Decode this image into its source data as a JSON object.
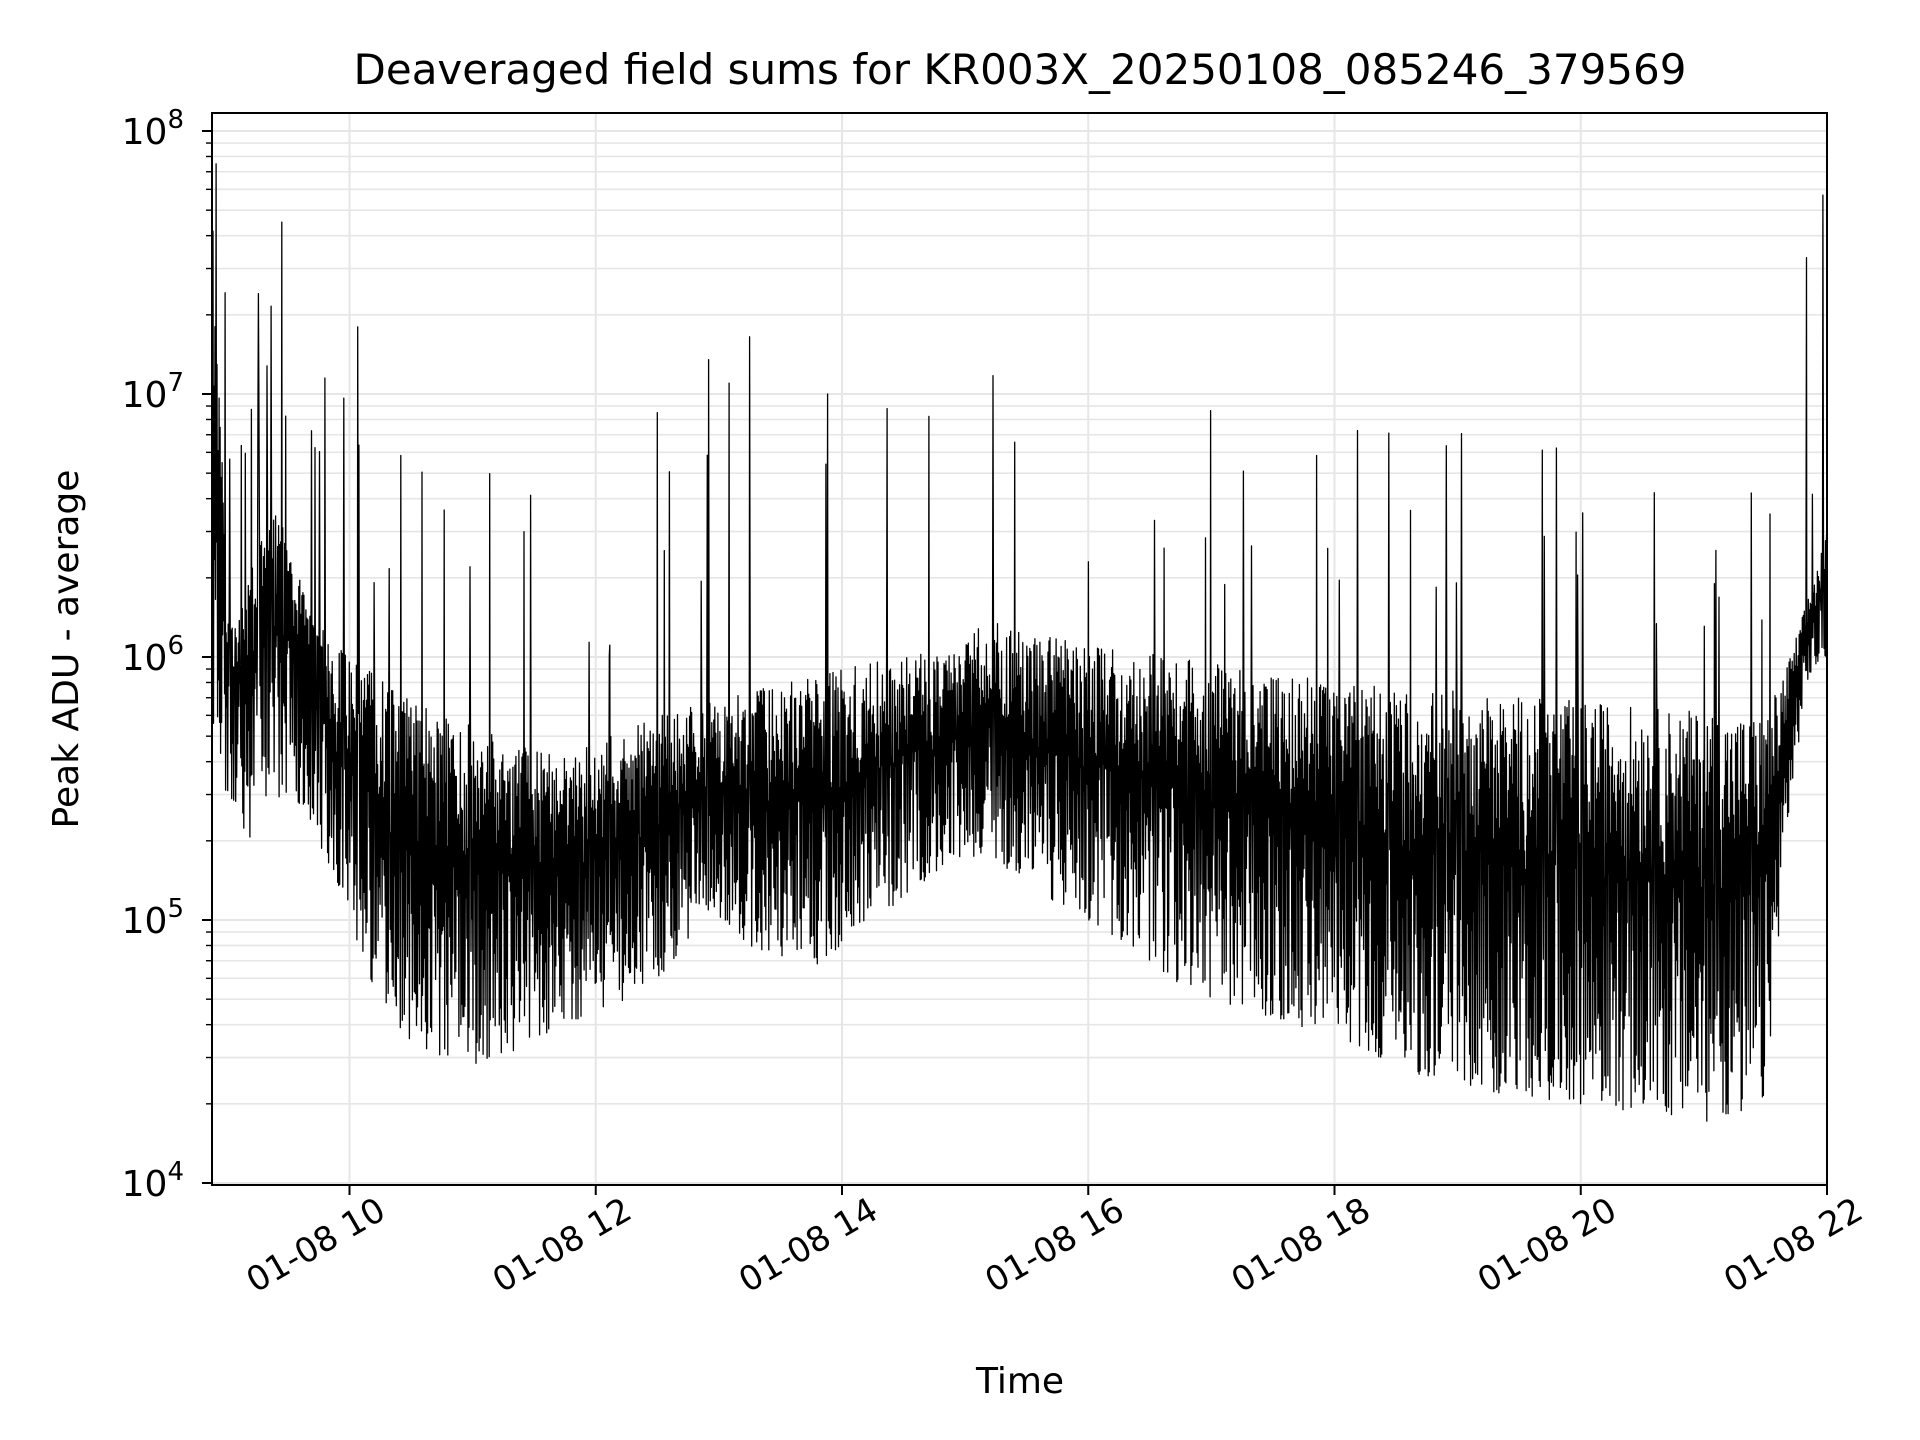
{
  "chart_data": {
    "type": "line",
    "title": "Deaveraged field sums for KR003X_20250108_085246_379569",
    "xlabel": "Time",
    "ylabel": "Peak ADU - average",
    "yscale": "log",
    "xlim": [
      "2025-01-08 08:53",
      "2025-01-08 22:00"
    ],
    "ylim": [
      10000,
      100000000
    ],
    "x_ticks": [
      "2025-01-08 10:00",
      "2025-01-08 12:00",
      "2025-01-08 14:00",
      "2025-01-08 16:00",
      "2025-01-08 18:00",
      "2025-01-08 20:00",
      "2025-01-08 22:00"
    ],
    "x_tick_labels": [
      "01-08 10",
      "01-08 12",
      "01-08 14",
      "01-08 16",
      "01-08 18",
      "01-08 20",
      "01-08 22"
    ],
    "y_ticks": [
      10000,
      100000,
      1000000,
      10000000,
      100000000
    ],
    "y_tick_labels": [
      {
        "base": "10",
        "exp": "4"
      },
      {
        "base": "10",
        "exp": "5"
      },
      {
        "base": "10",
        "exp": "6"
      },
      {
        "base": "10",
        "exp": "7"
      },
      {
        "base": "10",
        "exp": "8"
      }
    ],
    "grid": true,
    "grid_color": "#e6e6e6",
    "line_color": "#000000",
    "series": [
      {
        "name": "",
        "x": [
          "2025-01-08 08:53",
          "2025-01-08 09:00",
          "2025-01-08 09:10",
          "2025-01-08 09:20",
          "2025-01-08 09:30",
          "2025-01-08 09:40",
          "2025-01-08 09:50",
          "2025-01-08 10:00",
          "2025-01-08 10:10",
          "2025-01-08 10:20",
          "2025-01-08 10:30",
          "2025-01-08 10:45",
          "2025-01-08 11:00",
          "2025-01-08 11:15",
          "2025-01-08 11:30",
          "2025-01-08 11:45",
          "2025-01-08 12:00",
          "2025-01-08 12:15",
          "2025-01-08 12:30",
          "2025-01-08 12:45",
          "2025-01-08 13:00",
          "2025-01-08 13:15",
          "2025-01-08 13:30",
          "2025-01-08 13:45",
          "2025-01-08 14:00",
          "2025-01-08 14:15",
          "2025-01-08 14:30",
          "2025-01-08 14:45",
          "2025-01-08 15:00",
          "2025-01-08 15:10",
          "2025-01-08 15:20",
          "2025-01-08 15:40",
          "2025-01-08 16:00",
          "2025-01-08 16:20",
          "2025-01-08 16:40",
          "2025-01-08 17:00",
          "2025-01-08 17:20",
          "2025-01-08 17:40",
          "2025-01-08 18:00",
          "2025-01-08 18:20",
          "2025-01-08 18:40",
          "2025-01-08 19:00",
          "2025-01-08 19:20",
          "2025-01-08 19:40",
          "2025-01-08 20:00",
          "2025-01-08 20:20",
          "2025-01-08 20:40",
          "2025-01-08 21:00",
          "2025-01-08 21:20",
          "2025-01-08 21:30",
          "2025-01-08 21:40",
          "2025-01-08 21:50",
          "2025-01-08 22:00"
        ],
        "upper": [
          60000000,
          2000000,
          1800000,
          4000000,
          3000000,
          1500000,
          1200000,
          1000000,
          900000,
          750000,
          700000,
          600000,
          550000,
          500000,
          450000,
          420000,
          480000,
          520000,
          600000,
          650000,
          700000,
          750000,
          800000,
          850000,
          900000,
          950000,
          1000000,
          1050000,
          1100000,
          1500000,
          1300000,
          1200000,
          1100000,
          1050000,
          1000000,
          950000,
          900000,
          850000,
          800000,
          780000,
          760000,
          740000,
          720000,
          700000,
          680000,
          660000,
          640000,
          620000,
          600000,
          600000,
          900000,
          1600000,
          3000000
        ],
        "lower": [
          600000,
          300000,
          200000,
          250000,
          300000,
          250000,
          150000,
          100000,
          60000,
          40000,
          35000,
          30000,
          28000,
          30000,
          35000,
          40000,
          45000,
          50000,
          60000,
          80000,
          100000,
          80000,
          70000,
          60000,
          80000,
          100000,
          120000,
          150000,
          170000,
          180000,
          150000,
          120000,
          100000,
          80000,
          60000,
          50000,
          45000,
          40000,
          35000,
          30000,
          26000,
          24000,
          22000,
          21000,
          20000,
          19000,
          18000,
          17000,
          18000,
          20000,
          200000,
          800000,
          1000000
        ],
        "peaks": [
          {
            "x": "2025-01-08 08:55",
            "y": 75000000
          },
          {
            "x": "2025-01-08 09:27",
            "y": 45000000
          },
          {
            "x": "2025-01-08 10:04",
            "y": 18000000
          },
          {
            "x": "2025-01-08 09:48",
            "y": 11500000
          },
          {
            "x": "2025-01-08 12:30",
            "y": 8500000
          },
          {
            "x": "2025-01-08 12:55",
            "y": 13500000
          },
          {
            "x": "2025-01-08 13:15",
            "y": 16500000
          },
          {
            "x": "2025-01-08 13:05",
            "y": 11000000
          },
          {
            "x": "2025-01-08 13:53",
            "y": 10000000
          },
          {
            "x": "2025-01-08 14:22",
            "y": 8800000
          },
          {
            "x": "2025-01-08 21:50",
            "y": 33000000
          },
          {
            "x": "2025-01-08 21:58",
            "y": 57000000
          }
        ]
      }
    ]
  }
}
